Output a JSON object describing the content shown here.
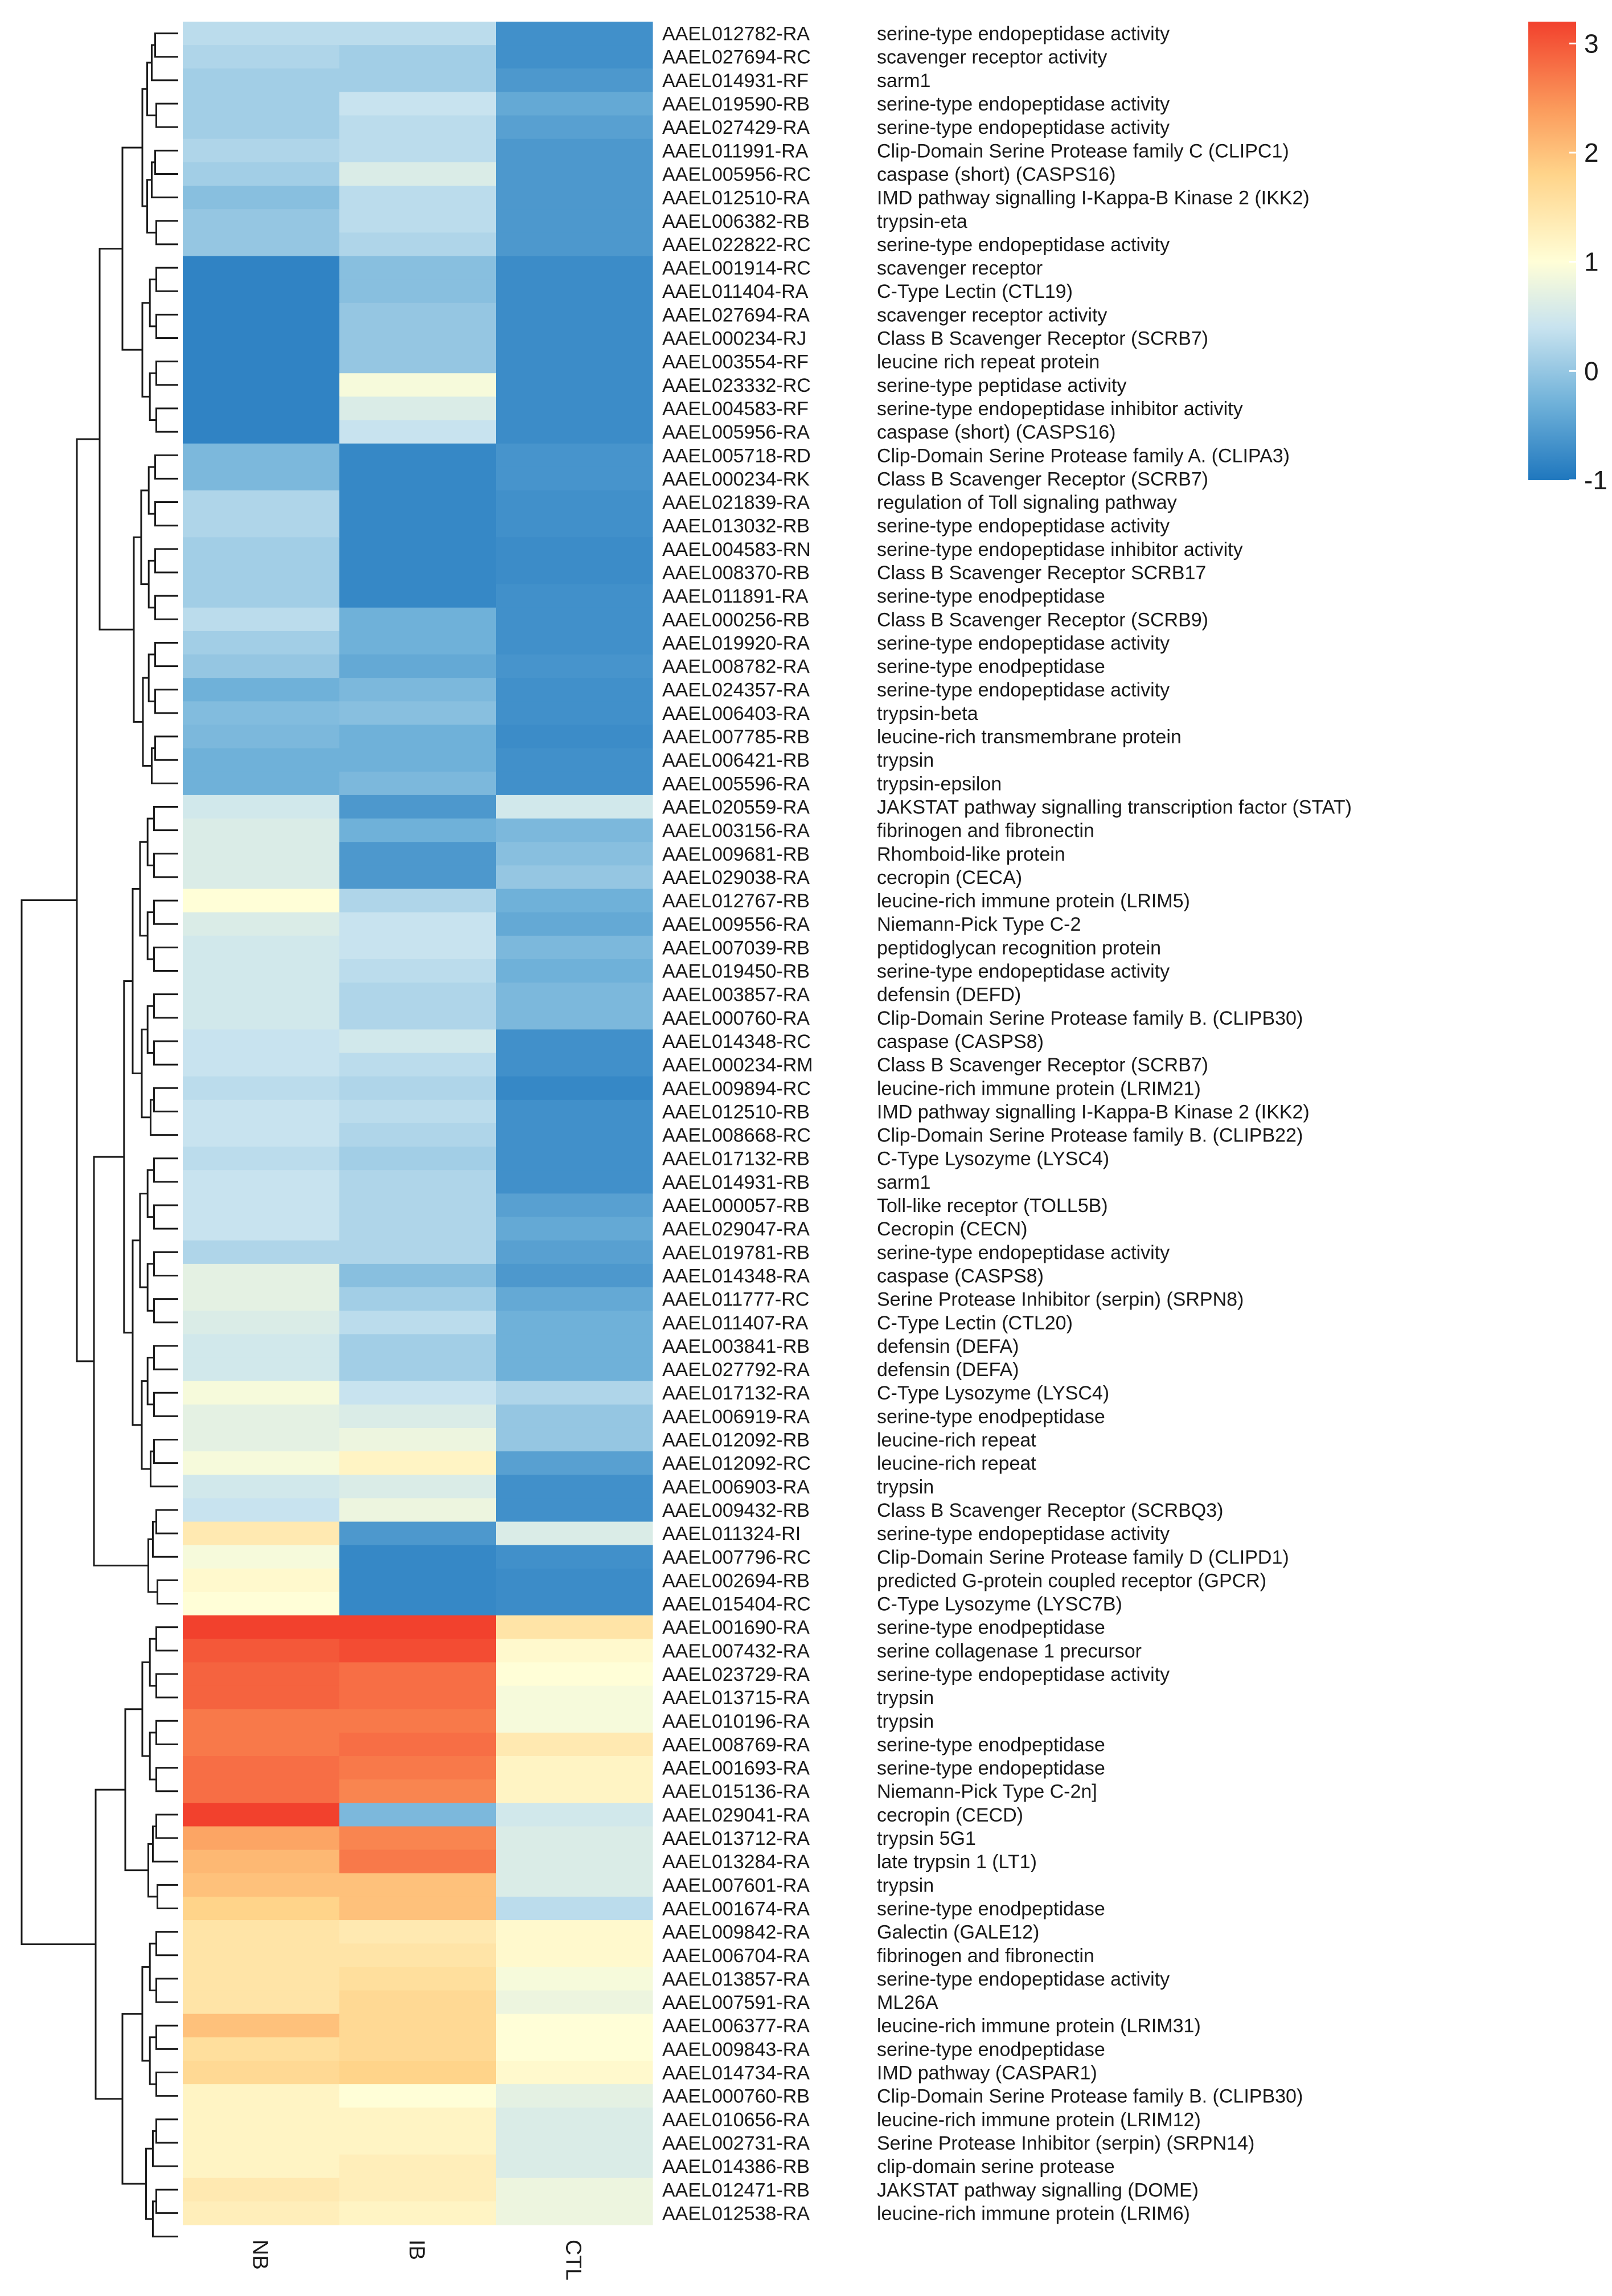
{
  "chart_data": {
    "type": "heatmap",
    "title": "",
    "columns": [
      "NB",
      "IB",
      "CTL"
    ],
    "rows": [
      {
        "id": "AAEL012782-RA",
        "desc": "serine-type endopeptidase activity",
        "values": [
          0.3,
          0.3,
          -0.7
        ]
      },
      {
        "id": "AAEL027694-RC",
        "desc": "scavenger receptor activity",
        "values": [
          0.2,
          0.1,
          -0.7
        ]
      },
      {
        "id": "AAEL014931-RF",
        "desc": "sarm1",
        "values": [
          0.1,
          0.1,
          -0.6
        ]
      },
      {
        "id": "AAEL019590-RB",
        "desc": "serine-type endopeptidase activity",
        "values": [
          0.1,
          0.4,
          -0.4
        ]
      },
      {
        "id": "AAEL027429-RA",
        "desc": "serine-type endopeptidase activity",
        "values": [
          0.1,
          0.3,
          -0.5
        ]
      },
      {
        "id": "AAEL011991-RA",
        "desc": "Clip-Domain Serine Protease family C (CLIPC1)",
        "values": [
          0.2,
          0.3,
          -0.6
        ]
      },
      {
        "id": "AAEL005956-RC",
        "desc": "caspase (short) (CASPS16)",
        "values": [
          0.1,
          0.6,
          -0.6
        ]
      },
      {
        "id": "AAEL012510-RA",
        "desc": "IMD pathway signalling  I-Kappa-B Kinase 2 (IKK2)",
        "values": [
          -0.1,
          0.3,
          -0.6
        ]
      },
      {
        "id": "AAEL006382-RB",
        "desc": "trypsin-eta",
        "values": [
          0.0,
          0.3,
          -0.6
        ]
      },
      {
        "id": "AAEL022822-RC",
        "desc": "serine-type endopeptidase activity",
        "values": [
          0.0,
          0.2,
          -0.6
        ]
      },
      {
        "id": "AAEL001914-RC",
        "desc": "scavenger receptor",
        "values": [
          -0.85,
          -0.1,
          -0.75
        ]
      },
      {
        "id": "AAEL011404-RA",
        "desc": "C-Type Lectin (CTL19)",
        "values": [
          -0.85,
          -0.1,
          -0.75
        ]
      },
      {
        "id": "AAEL027694-RA",
        "desc": "scavenger receptor activity",
        "values": [
          -0.85,
          0.0,
          -0.75
        ]
      },
      {
        "id": "AAEL000234-RJ",
        "desc": "Class B Scavenger Receptor (SCRB7)",
        "values": [
          -0.85,
          0.0,
          -0.75
        ]
      },
      {
        "id": "AAEL003554-RF",
        "desc": "leucine rich repeat protein",
        "values": [
          -0.85,
          0.0,
          -0.75
        ]
      },
      {
        "id": "AAEL023332-RC",
        "desc": "serine-type peptidase activity",
        "values": [
          -0.85,
          0.9,
          -0.75
        ]
      },
      {
        "id": "AAEL004583-RF",
        "desc": "serine-type endopeptidase inhibitor activity",
        "values": [
          -0.85,
          0.6,
          -0.75
        ]
      },
      {
        "id": "AAEL005956-RA",
        "desc": "caspase (short) (CASPS16)",
        "values": [
          -0.85,
          0.4,
          -0.75
        ]
      },
      {
        "id": "AAEL005718-RD",
        "desc": "Clip-Domain Serine Protease  family A. (CLIPA3)",
        "values": [
          -0.2,
          -0.8,
          -0.65
        ]
      },
      {
        "id": "AAEL000234-RK",
        "desc": "Class B Scavenger Receptor (SCRB7)",
        "values": [
          -0.2,
          -0.8,
          -0.65
        ]
      },
      {
        "id": "AAEL021839-RA",
        "desc": "regulation of Toll signaling pathway",
        "values": [
          0.2,
          -0.8,
          -0.7
        ]
      },
      {
        "id": "AAEL013032-RB",
        "desc": "serine-type endopeptidase activity",
        "values": [
          0.2,
          -0.8,
          -0.7
        ]
      },
      {
        "id": "AAEL004583-RN",
        "desc": "serine-type endopeptidase inhibitor activity",
        "values": [
          0.1,
          -0.8,
          -0.75
        ]
      },
      {
        "id": "AAEL008370-RB",
        "desc": "Class B Scavenger Receptor SCRB17",
        "values": [
          0.1,
          -0.8,
          -0.75
        ]
      },
      {
        "id": "AAEL011891-RA",
        "desc": "serine-type enodpeptidase",
        "values": [
          0.1,
          -0.8,
          -0.7
        ]
      },
      {
        "id": "AAEL000256-RB",
        "desc": "Class B Scavenger Receptor (SCRB9)",
        "values": [
          0.3,
          -0.3,
          -0.7
        ]
      },
      {
        "id": "AAEL019920-RA",
        "desc": "serine-type endopeptidase activity",
        "values": [
          0.1,
          -0.3,
          -0.7
        ]
      },
      {
        "id": "AAEL008782-RA",
        "desc": "serine-type enodpeptidase",
        "values": [
          0.0,
          -0.4,
          -0.65
        ]
      },
      {
        "id": "AAEL024357-RA",
        "desc": "serine-type endopeptidase activity",
        "values": [
          -0.3,
          -0.2,
          -0.7
        ]
      },
      {
        "id": "AAEL006403-RA",
        "desc": "trypsin-beta",
        "values": [
          -0.15,
          -0.1,
          -0.7
        ]
      },
      {
        "id": "AAEL007785-RB",
        "desc": "leucine-rich transmembrane protein",
        "values": [
          -0.2,
          -0.3,
          -0.75
        ]
      },
      {
        "id": "AAEL006421-RB",
        "desc": "trypsin",
        "values": [
          -0.3,
          -0.3,
          -0.7
        ]
      },
      {
        "id": "AAEL005596-RA",
        "desc": "trypsin-epsilon",
        "values": [
          -0.3,
          -0.2,
          -0.7
        ]
      },
      {
        "id": "AAEL020559-RA",
        "desc": "JAKSTAT pathway signalling transcription factor (STAT)",
        "values": [
          0.5,
          -0.6,
          0.5
        ]
      },
      {
        "id": "AAEL003156-RA",
        "desc": "fibrinogen and fibronectin",
        "values": [
          0.6,
          -0.3,
          -0.2
        ]
      },
      {
        "id": "AAEL009681-RB",
        "desc": "Rhomboid-like protein",
        "values": [
          0.6,
          -0.6,
          -0.1
        ]
      },
      {
        "id": "AAEL029038-RA",
        "desc": "cecropin (CECA)",
        "values": [
          0.6,
          -0.6,
          0.0
        ]
      },
      {
        "id": "AAEL012767-RB",
        "desc": "leucine-rich immune protein (LRIM5)",
        "values": [
          1.0,
          0.2,
          -0.3
        ]
      },
      {
        "id": "AAEL009556-RA",
        "desc": "Niemann-Pick Type C-2",
        "values": [
          0.6,
          0.4,
          -0.4
        ]
      },
      {
        "id": "AAEL007039-RB",
        "desc": "peptidoglycan recognition protein",
        "values": [
          0.5,
          0.4,
          -0.2
        ]
      },
      {
        "id": "AAEL019450-RB",
        "desc": "serine-type endopeptidase activity",
        "values": [
          0.5,
          0.3,
          -0.3
        ]
      },
      {
        "id": "AAEL003857-RA",
        "desc": "defensin (DEFD)",
        "values": [
          0.5,
          0.2,
          -0.2
        ]
      },
      {
        "id": "AAEL000760-RA",
        "desc": "Clip-Domain Serine Protease  family B. (CLIPB30)",
        "values": [
          0.5,
          0.2,
          -0.2
        ]
      },
      {
        "id": "AAEL014348-RC",
        "desc": "caspase (CASPS8)",
        "values": [
          0.4,
          0.5,
          -0.7
        ]
      },
      {
        "id": "AAEL000234-RM",
        "desc": "Class B Scavenger Receptor (SCRB7)",
        "values": [
          0.4,
          0.3,
          -0.7
        ]
      },
      {
        "id": "AAEL009894-RC",
        "desc": "leucine-rich immune protein (LRIM21)",
        "values": [
          0.3,
          0.2,
          -0.8
        ]
      },
      {
        "id": "AAEL012510-RB",
        "desc": "IMD pathway signalling  I-Kappa-B Kinase 2 (IKK2)",
        "values": [
          0.4,
          0.3,
          -0.7
        ]
      },
      {
        "id": "AAEL008668-RC",
        "desc": "Clip-Domain Serine Protease  family B. (CLIPB22)",
        "values": [
          0.4,
          0.2,
          -0.7
        ]
      },
      {
        "id": "AAEL017132-RB",
        "desc": "C-Type Lysozyme (LYSC4)",
        "values": [
          0.3,
          0.1,
          -0.7
        ]
      },
      {
        "id": "AAEL014931-RB",
        "desc": "sarm1",
        "values": [
          0.4,
          0.2,
          -0.7
        ]
      },
      {
        "id": "AAEL000057-RB",
        "desc": "Toll-like receptor (TOLL5B)",
        "values": [
          0.4,
          0.2,
          -0.5
        ]
      },
      {
        "id": "AAEL029047-RA",
        "desc": "Cecropin (CECN)",
        "values": [
          0.4,
          0.2,
          -0.4
        ]
      },
      {
        "id": "AAEL019781-RB",
        "desc": "serine-type endopeptidase activity",
        "values": [
          0.2,
          0.2,
          -0.5
        ]
      },
      {
        "id": "AAEL014348-RA",
        "desc": "caspase (CASPS8)",
        "values": [
          0.7,
          -0.1,
          -0.6
        ]
      },
      {
        "id": "AAEL011777-RC",
        "desc": "Serine Protease Inhibitor (serpin)  (SRPN8)",
        "values": [
          0.7,
          0.1,
          -0.4
        ]
      },
      {
        "id": "AAEL011407-RA",
        "desc": "C-Type Lectin (CTL20)",
        "values": [
          0.6,
          0.3,
          -0.3
        ]
      },
      {
        "id": "AAEL003841-RB",
        "desc": "defensin (DEFA)",
        "values": [
          0.5,
          0.1,
          -0.3
        ]
      },
      {
        "id": "AAEL027792-RA",
        "desc": "defensin (DEFA)",
        "values": [
          0.5,
          0.1,
          -0.3
        ]
      },
      {
        "id": "AAEL017132-RA",
        "desc": "C-Type Lysozyme (LYSC4)",
        "values": [
          0.9,
          0.4,
          0.2
        ]
      },
      {
        "id": "AAEL006919-RA",
        "desc": "serine-type enodpeptidase",
        "values": [
          0.7,
          0.6,
          0.0
        ]
      },
      {
        "id": "AAEL012092-RB",
        "desc": "leucine-rich repeat",
        "values": [
          0.7,
          0.8,
          0.0
        ]
      },
      {
        "id": "AAEL012092-RC",
        "desc": "leucine-rich repeat",
        "values": [
          0.9,
          1.2,
          -0.5
        ]
      },
      {
        "id": "AAEL006903-RA",
        "desc": "trypsin",
        "values": [
          0.5,
          0.6,
          -0.7
        ]
      },
      {
        "id": "AAEL009432-RB",
        "desc": "Class B Scavenger Receptor (SCRBQ3)",
        "values": [
          0.4,
          0.8,
          -0.7
        ]
      },
      {
        "id": "AAEL011324-RI",
        "desc": "serine-type endopeptidase activity",
        "values": [
          1.4,
          -0.6,
          0.6
        ]
      },
      {
        "id": "AAEL007796-RC",
        "desc": "Clip-Domain Serine Protease  family D (CLIPD1)",
        "values": [
          0.9,
          -0.8,
          -0.7
        ]
      },
      {
        "id": "AAEL002694-RB",
        "desc": "predicted G-protein coupled receptor (GPCR)",
        "values": [
          1.1,
          -0.8,
          -0.75
        ]
      },
      {
        "id": "AAEL015404-RC",
        "desc": "C-Type Lysozyme (LYSC7B)",
        "values": [
          1.0,
          -0.8,
          -0.75
        ]
      },
      {
        "id": "AAEL001690-RA",
        "desc": "serine-type enodpeptidase",
        "values": [
          3.2,
          3.2,
          1.5
        ]
      },
      {
        "id": "AAEL007432-RA",
        "desc": "serine collagenase 1 precursor",
        "values": [
          3.0,
          3.1,
          1.1
        ]
      },
      {
        "id": "AAEL023729-RA",
        "desc": "serine-type endopeptidase activity",
        "values": [
          2.9,
          2.8,
          1.0
        ]
      },
      {
        "id": "AAEL013715-RA",
        "desc": "trypsin",
        "values": [
          2.9,
          2.8,
          0.9
        ]
      },
      {
        "id": "AAEL010196-RA",
        "desc": "trypsin",
        "values": [
          2.7,
          2.7,
          0.9
        ]
      },
      {
        "id": "AAEL008769-RA",
        "desc": "serine-type enodpeptidase",
        "values": [
          2.7,
          2.8,
          1.4
        ]
      },
      {
        "id": "AAEL001693-RA",
        "desc": "serine-type endopeptidase",
        "values": [
          2.8,
          2.7,
          1.2
        ]
      },
      {
        "id": "AAEL015136-RA",
        "desc": "Niemann-Pick Type C-2n]",
        "values": [
          2.8,
          2.6,
          1.2
        ]
      },
      {
        "id": "AAEL029041-RA",
        "desc": "cecropin (CECD)",
        "values": [
          3.2,
          -0.2,
          0.5
        ]
      },
      {
        "id": "AAEL013712-RA",
        "desc": "trypsin 5G1",
        "values": [
          2.3,
          2.6,
          0.6
        ]
      },
      {
        "id": "AAEL013284-RA",
        "desc": "late trypsin 1 (LT1)",
        "values": [
          2.1,
          2.7,
          0.6
        ]
      },
      {
        "id": "AAEL007601-RA",
        "desc": "trypsin",
        "values": [
          2.0,
          2.0,
          0.6
        ]
      },
      {
        "id": "AAEL001674-RA",
        "desc": "serine-type enodpeptidase",
        "values": [
          1.8,
          2.0,
          0.3
        ]
      },
      {
        "id": "AAEL009842-RA",
        "desc": "Galectin (GALE12)",
        "values": [
          1.5,
          1.4,
          1.1
        ]
      },
      {
        "id": "AAEL006704-RA",
        "desc": "fibrinogen and fibronectin",
        "values": [
          1.5,
          1.5,
          1.1
        ]
      },
      {
        "id": "AAEL013857-RA",
        "desc": "serine-type endopeptidase activity",
        "values": [
          1.5,
          1.6,
          0.9
        ]
      },
      {
        "id": "AAEL007591-RA",
        "desc": "ML26A",
        "values": [
          1.5,
          1.7,
          0.8
        ]
      },
      {
        "id": "AAEL006377-RA",
        "desc": "leucine-rich immune protein (LRIM31)",
        "values": [
          2.0,
          1.7,
          1.0
        ]
      },
      {
        "id": "AAEL009843-RA",
        "desc": "serine-type enodpeptidase",
        "values": [
          1.6,
          1.7,
          1.0
        ]
      },
      {
        "id": "AAEL014734-RA",
        "desc": "IMD pathway (CASPAR1)",
        "values": [
          1.7,
          1.8,
          1.1
        ]
      },
      {
        "id": "AAEL000760-RB",
        "desc": "Clip-Domain Serine Protease  family B. (CLIPB30)",
        "values": [
          1.2,
          1.0,
          0.7
        ]
      },
      {
        "id": "AAEL010656-RA",
        "desc": "leucine-rich immune protein (LRIM12)",
        "values": [
          1.2,
          1.2,
          0.6
        ]
      },
      {
        "id": "AAEL002731-RA",
        "desc": "Serine Protease Inhibitor (serpin) (SRPN14)",
        "values": [
          1.2,
          1.2,
          0.6
        ]
      },
      {
        "id": "AAEL014386-RB",
        "desc": "clip-domain serine protease",
        "values": [
          1.2,
          1.3,
          0.6
        ]
      },
      {
        "id": "AAEL012471-RB",
        "desc": "JAKSTAT pathway signalling  (DOME)",
        "values": [
          1.4,
          1.3,
          0.8
        ]
      },
      {
        "id": "AAEL012538-RA",
        "desc": "leucine-rich immune protein (LRIM6)",
        "values": [
          1.3,
          1.2,
          0.8
        ]
      }
    ],
    "colorbar": {
      "min": -1,
      "max": 3.2,
      "ticks": [
        "3",
        "2",
        "1",
        "0",
        "-1"
      ],
      "tick_values": [
        3,
        2,
        1,
        0,
        -1
      ],
      "colors": [
        "#1f77be",
        "#6fb1d9",
        "#c8e3ef",
        "#fffed7",
        "#ffd48a",
        "#fb9b5c",
        "#f2412d"
      ],
      "color_stops": [
        -1,
        -0.3,
        0.4,
        1.0,
        1.8,
        2.4,
        3.2
      ]
    },
    "dendrogram": "hierarchical clustering tree on the left side"
  }
}
